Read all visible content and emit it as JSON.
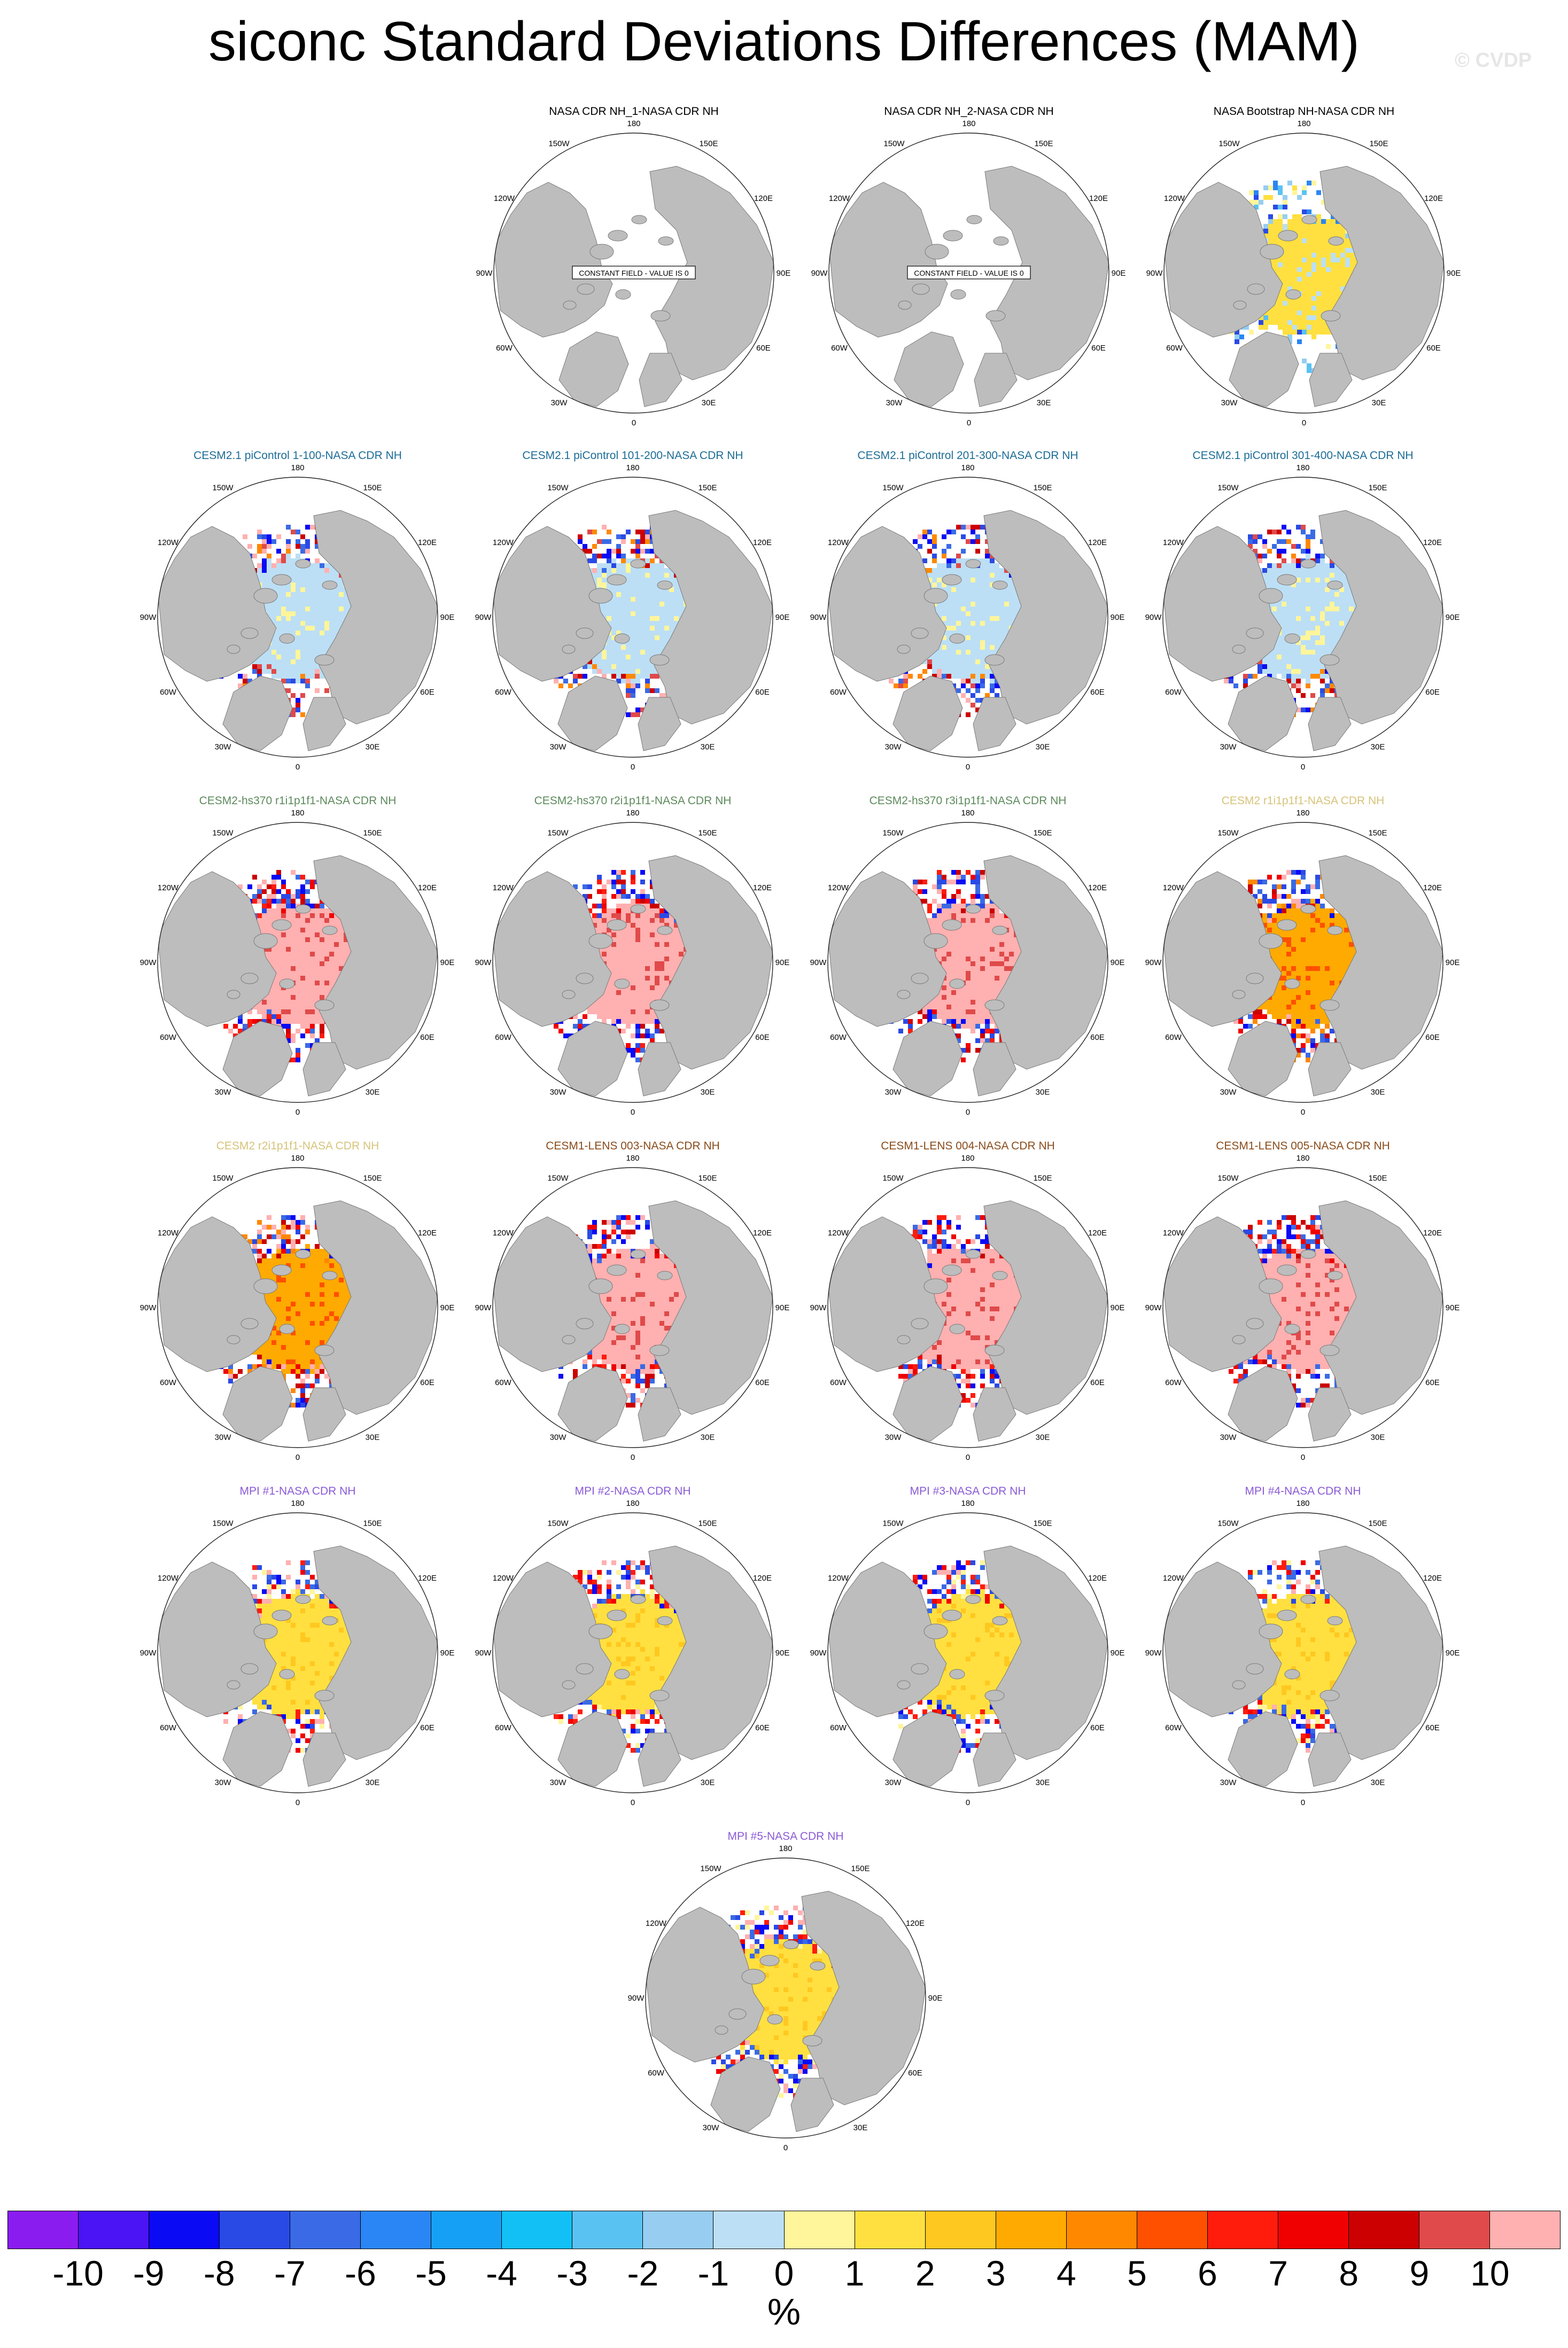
{
  "title": "siconc Standard Deviations Differences (MAM)",
  "watermark": "© CVDP",
  "colors": {
    "land": "#bdbdbd",
    "ocean": "#ffffff",
    "title_black": "#000000",
    "title_cesm21": "#1c6c96",
    "title_hs370": "#5c8a5c",
    "title_r1i1": "#d7c37a",
    "title_lens": "#8a4b1a",
    "title_mpi": "#8a5ad6"
  },
  "longitude_labels": [
    "180",
    "150E",
    "120E",
    "90E",
    "60E",
    "30E",
    "0",
    "30W",
    "60W",
    "90W",
    "120W",
    "150W"
  ],
  "constant_field_text": "CONSTANT FIELD - VALUE IS 0",
  "panels": [
    {
      "title": "NASA CDR NH_1-NASA CDR NH",
      "group": "black",
      "pattern": "constant"
    },
    {
      "title": "NASA CDR NH_2-NASA CDR NH",
      "group": "black",
      "pattern": "constant"
    },
    {
      "title": "NASA Bootstrap NH-NASA CDR NH",
      "group": "black",
      "pattern": "bootstrap"
    },
    {
      "title": "CESM2.1 piControl 1-100-NASA CDR NH",
      "group": "cesm21",
      "pattern": "cesm21"
    },
    {
      "title": "CESM2.1 piControl 101-200-NASA CDR NH",
      "group": "cesm21",
      "pattern": "cesm21"
    },
    {
      "title": "CESM2.1 piControl 201-300-NASA CDR NH",
      "group": "cesm21",
      "pattern": "cesm21"
    },
    {
      "title": "CESM2.1 piControl 301-400-NASA CDR NH",
      "group": "cesm21",
      "pattern": "cesm21"
    },
    {
      "title": "CESM2-hs370 r1i1p1f1-NASA CDR NH",
      "group": "hs370",
      "pattern": "pink"
    },
    {
      "title": "CESM2-hs370 r2i1p1f1-NASA CDR NH",
      "group": "hs370",
      "pattern": "pink"
    },
    {
      "title": "CESM2-hs370 r3i1p1f1-NASA CDR NH",
      "group": "hs370",
      "pattern": "pink"
    },
    {
      "title": "CESM2 r1i1p1f1-NASA CDR NH",
      "group": "r1i1",
      "pattern": "orange"
    },
    {
      "title": "CESM2 r2i1p1f1-NASA CDR NH",
      "group": "r1i1",
      "pattern": "orange"
    },
    {
      "title": "CESM1-LENS 003-NASA CDR NH",
      "group": "lens",
      "pattern": "pink"
    },
    {
      "title": "CESM1-LENS 004-NASA CDR NH",
      "group": "lens",
      "pattern": "pink"
    },
    {
      "title": "CESM1-LENS 005-NASA CDR NH",
      "group": "lens",
      "pattern": "pink"
    },
    {
      "title": "MPI #1-NASA CDR NH",
      "group": "mpi",
      "pattern": "yellow"
    },
    {
      "title": "MPI #2-NASA CDR NH",
      "group": "mpi",
      "pattern": "yellow"
    },
    {
      "title": "MPI #3-NASA CDR NH",
      "group": "mpi",
      "pattern": "yellow"
    },
    {
      "title": "MPI #4-NASA CDR NH",
      "group": "mpi",
      "pattern": "yellow"
    },
    {
      "title": "MPI #5-NASA CDR NH",
      "group": "mpi",
      "pattern": "yellow"
    }
  ],
  "colorbar": {
    "unit": "%",
    "ticks": [
      "-10",
      "-9",
      "-8",
      "-7",
      "-6",
      "-5",
      "-4",
      "-3",
      "-2",
      "-1",
      "0",
      "1",
      "2",
      "3",
      "4",
      "5",
      "6",
      "7",
      "8",
      "9",
      "10"
    ],
    "colors": [
      "#8a1cf0",
      "#4a14f5",
      "#0a0af5",
      "#2a4ae6",
      "#3a6ae6",
      "#2a86f5",
      "#16a0f5",
      "#12c0f5",
      "#5ac2f2",
      "#96cdf0",
      "#bcdff5",
      "#fff59a",
      "#ffe040",
      "#ffc820",
      "#ffaa00",
      "#ff8800",
      "#ff5000",
      "#ff1c0c",
      "#f00000",
      "#cc0000",
      "#e04a4a",
      "#ffb0b0"
    ]
  }
}
